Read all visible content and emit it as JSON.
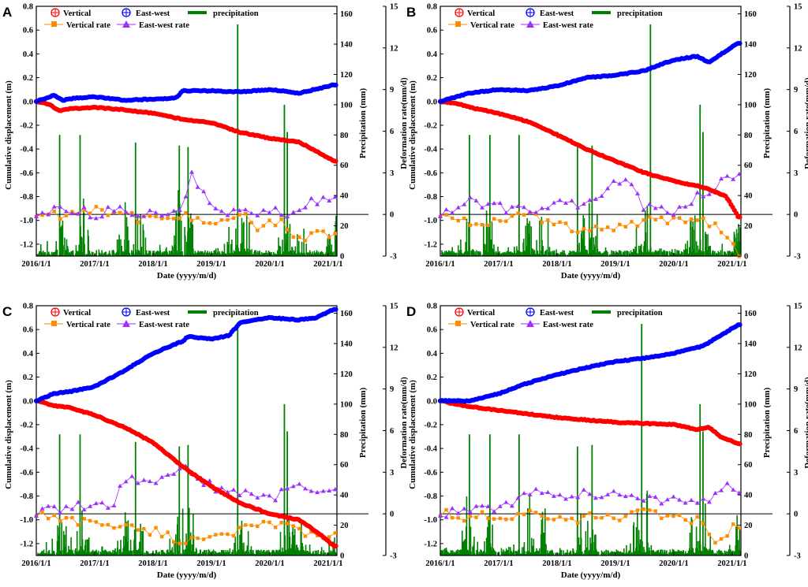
{
  "figure": {
    "xlabel": "Date (yyyy/m/d)",
    "ylabel_left": "Cumulative displacement (m)",
    "ylabel_precip": "Precipitation (mm)",
    "ylabel_rate": "Deformation rate(mm/d)",
    "legend": {
      "vertical": "Vertical",
      "east_west": "East-west",
      "precipitation": "precipitation",
      "vertical_rate": "Vertical rate",
      "east_west_rate": "East-west rate"
    },
    "x_ticks": [
      "2016/1/1",
      "2017/1/1",
      "2018/1/1",
      "2019/1/1",
      "2020/1/1",
      "2021/1/1"
    ],
    "left_ticks": [
      "0.8",
      "0.6",
      "0.4",
      "0.2",
      "0.0",
      "-0.2",
      "-0.4",
      "-0.6",
      "-0.8",
      "-1.0",
      "-1.2"
    ],
    "precip_ticks": [
      "160",
      "140",
      "120",
      "100",
      "80",
      "60",
      "40",
      "20",
      "0"
    ],
    "rate_ticks": [
      "15",
      "12",
      "9",
      "6",
      "3",
      "0",
      "-3"
    ],
    "colors": {
      "vertical": "#ff0000",
      "east_west": "#0000ff",
      "precipitation": "#008000",
      "vertical_rate": "#ff8c00",
      "east_west_rate": "#9b30ff"
    }
  },
  "chart_data": [
    {
      "type": "line",
      "panel": "A",
      "title": "",
      "xlabel": "Date (yyyy/m/d)",
      "ylabel": "Cumulative displacement (m)",
      "x_range": [
        2016.0,
        2021.15
      ],
      "ylim": [
        -1.3,
        0.8
      ],
      "y2lim_precipitation": [
        0,
        165
      ],
      "y3lim_rate": [
        -3,
        15
      ],
      "series": [
        {
          "name": "Vertical",
          "x": [
            2016.0,
            2016.2,
            2016.4,
            2016.6,
            2017.0,
            2017.5,
            2018.0,
            2018.5,
            2019.0,
            2019.5,
            2020.0,
            2020.5,
            2020.8,
            2021.1
          ],
          "values": [
            0.0,
            -0.02,
            -0.08,
            -0.06,
            -0.05,
            -0.07,
            -0.1,
            -0.15,
            -0.18,
            -0.26,
            -0.31,
            -0.34,
            -0.42,
            -0.5
          ]
        },
        {
          "name": "East-west",
          "x": [
            2016.0,
            2016.3,
            2016.45,
            2016.7,
            2017.0,
            2017.5,
            2018.0,
            2018.4,
            2018.5,
            2019.0,
            2019.5,
            2020.0,
            2020.5,
            2021.1
          ],
          "values": [
            0.0,
            0.05,
            0.01,
            0.03,
            0.04,
            0.01,
            0.02,
            0.03,
            0.09,
            0.09,
            0.08,
            0.1,
            0.07,
            0.14
          ]
        },
        {
          "name": "Vertical rate",
          "x": [
            2016.0,
            2016.5,
            2017.0,
            2017.5,
            2018.0,
            2018.5,
            2019.0,
            2019.5,
            2019.8,
            2020.2,
            2020.5,
            2020.8,
            2021.1
          ],
          "values": [
            0,
            0,
            0.5,
            0,
            -0.5,
            0,
            -0.5,
            0,
            -1.0,
            -0.5,
            -1.8,
            -1.2,
            -1.5
          ]
        },
        {
          "name": "East-west rate",
          "x": [
            2016.0,
            2016.5,
            2017.0,
            2017.5,
            2018.0,
            2018.5,
            2018.65,
            2019.0,
            2019.5,
            2020.0,
            2020.3,
            2020.6,
            2021.1
          ],
          "values": [
            0,
            0.5,
            0,
            0.4,
            0,
            0.5,
            3.0,
            0.3,
            0,
            0.4,
            -0.4,
            0.8,
            1.0
          ]
        },
        {
          "name": "precipitation",
          "peaks_x": [
            2016.4,
            2016.75,
            2017.7,
            2018.45,
            2018.6,
            2019.45,
            2020.25,
            2020.3
          ],
          "peaks_mm": [
            80,
            80,
            75,
            73,
            72,
            153,
            100,
            82
          ]
        }
      ]
    },
    {
      "type": "line",
      "panel": "B",
      "title": "",
      "xlabel": "Date (yyyy/m/d)",
      "ylabel": "Cumulative displacement (m)",
      "x_range": [
        2016.0,
        2021.15
      ],
      "ylim": [
        -1.3,
        0.8
      ],
      "y2lim_precipitation": [
        0,
        165
      ],
      "y3lim_rate": [
        -3,
        15
      ],
      "series": [
        {
          "name": "Vertical",
          "x": [
            2016.0,
            2016.3,
            2016.6,
            2017.0,
            2017.5,
            2018.0,
            2018.5,
            2019.0,
            2019.5,
            2020.0,
            2020.5,
            2020.9,
            2021.1
          ],
          "values": [
            0.0,
            -0.02,
            -0.06,
            -0.1,
            -0.17,
            -0.28,
            -0.4,
            -0.5,
            -0.6,
            -0.67,
            -0.72,
            -0.8,
            -0.97
          ]
        },
        {
          "name": "East-west",
          "x": [
            2016.0,
            2016.5,
            2017.0,
            2017.5,
            2018.0,
            2018.5,
            2019.0,
            2019.5,
            2020.0,
            2020.4,
            2020.6,
            2021.1
          ],
          "values": [
            0.0,
            0.07,
            0.1,
            0.09,
            0.13,
            0.2,
            0.22,
            0.26,
            0.35,
            0.38,
            0.33,
            0.49
          ]
        },
        {
          "name": "Vertical rate",
          "x": [
            2016.0,
            2016.5,
            2017.0,
            2017.5,
            2018.0,
            2018.5,
            2019.0,
            2019.5,
            2020.0,
            2020.5,
            2020.8,
            2021.1
          ],
          "values": [
            0,
            -0.5,
            -0.5,
            0,
            -0.8,
            -1.2,
            -1.0,
            -0.5,
            -0.5,
            -0.3,
            -1.0,
            -2.8
          ]
        },
        {
          "name": "East-west rate",
          "x": [
            2016.0,
            2016.5,
            2017.0,
            2017.5,
            2018.0,
            2018.5,
            2018.9,
            2019.2,
            2019.5,
            2020.0,
            2020.5,
            2021.1
          ],
          "values": [
            0,
            1.0,
            0.5,
            0.3,
            1.0,
            0.5,
            2.0,
            2.5,
            0.5,
            0.3,
            1.5,
            3.0
          ]
        },
        {
          "name": "precipitation",
          "peaks_x": [
            2016.5,
            2016.85,
            2017.35,
            2018.35,
            2018.6,
            2019.6,
            2020.45,
            2020.5
          ],
          "peaks_mm": [
            80,
            80,
            80,
            72,
            73,
            153,
            100,
            82
          ]
        }
      ]
    },
    {
      "type": "line",
      "panel": "C",
      "title": "",
      "xlabel": "Date (yyyy/m/d)",
      "ylabel": "Cumulative displacement (m)",
      "x_range": [
        2016.0,
        2021.15
      ],
      "ylim": [
        -1.3,
        0.8
      ],
      "y2lim_precipitation": [
        0,
        165
      ],
      "y3lim_rate": [
        -3,
        15
      ],
      "series": [
        {
          "name": "Vertical",
          "x": [
            2016.0,
            2016.3,
            2016.6,
            2017.0,
            2017.5,
            2018.0,
            2018.5,
            2019.0,
            2019.5,
            2020.0,
            2020.5,
            2020.8,
            2021.1
          ],
          "values": [
            0.0,
            -0.04,
            -0.06,
            -0.12,
            -0.22,
            -0.35,
            -0.55,
            -0.72,
            -0.86,
            -0.95,
            -1.0,
            -1.1,
            -1.22
          ]
        },
        {
          "name": "East-west",
          "x": [
            2016.0,
            2016.3,
            2016.6,
            2017.0,
            2017.5,
            2018.0,
            2018.5,
            2018.6,
            2019.0,
            2019.3,
            2019.5,
            2020.0,
            2020.5,
            2020.8,
            2021.1
          ],
          "values": [
            0.0,
            0.06,
            0.08,
            0.12,
            0.25,
            0.4,
            0.5,
            0.54,
            0.52,
            0.55,
            0.66,
            0.7,
            0.68,
            0.7,
            0.77
          ]
        },
        {
          "name": "Vertical rate",
          "x": [
            2016.0,
            2016.5,
            2017.0,
            2017.5,
            2018.0,
            2018.5,
            2019.0,
            2019.5,
            2020.0,
            2020.5,
            2020.8,
            2021.1
          ],
          "values": [
            0,
            -0.5,
            -0.5,
            -1.0,
            -1.2,
            -2.0,
            -1.5,
            -1.2,
            -0.8,
            -1.0,
            -1.8,
            -1.5
          ]
        },
        {
          "name": "East-west rate",
          "x": [
            2016.0,
            2016.5,
            2017.0,
            2017.3,
            2017.5,
            2018.0,
            2018.5,
            2019.0,
            2019.5,
            2020.0,
            2020.5,
            2020.8,
            2021.1
          ],
          "values": [
            0,
            0.5,
            0.5,
            0.5,
            2.5,
            2.0,
            3.5,
            2.0,
            1.5,
            1.0,
            2.5,
            1.5,
            1.5
          ]
        },
        {
          "name": "precipitation",
          "peaks_x": [
            2016.4,
            2016.75,
            2017.7,
            2018.45,
            2018.6,
            2019.45,
            2020.25,
            2020.3
          ],
          "peaks_mm": [
            80,
            80,
            75,
            72,
            73,
            153,
            100,
            82
          ]
        }
      ]
    },
    {
      "type": "line",
      "panel": "D",
      "title": "",
      "xlabel": "Date (yyyy/m/d)",
      "ylabel": "Cumulative displacement (m)",
      "x_range": [
        2016.0,
        2021.15
      ],
      "ylim": [
        -1.3,
        0.8
      ],
      "y2lim_precipitation": [
        0,
        165
      ],
      "y3lim_rate": [
        -3,
        15
      ],
      "series": [
        {
          "name": "Vertical",
          "x": [
            2016.0,
            2016.4,
            2017.0,
            2017.5,
            2018.0,
            2018.5,
            2019.0,
            2019.5,
            2020.0,
            2020.4,
            2020.6,
            2020.8,
            2021.1
          ],
          "values": [
            0.0,
            -0.04,
            -0.08,
            -0.11,
            -0.14,
            -0.16,
            -0.18,
            -0.19,
            -0.2,
            -0.24,
            -0.22,
            -0.3,
            -0.36
          ]
        },
        {
          "name": "East-west",
          "x": [
            2016.0,
            2016.5,
            2017.0,
            2017.5,
            2018.0,
            2018.5,
            2019.0,
            2019.5,
            2020.0,
            2020.5,
            2021.1
          ],
          "values": [
            0.0,
            0.0,
            0.06,
            0.15,
            0.22,
            0.28,
            0.33,
            0.36,
            0.4,
            0.46,
            0.64
          ]
        },
        {
          "name": "Vertical rate",
          "x": [
            2016.0,
            2016.5,
            2017.0,
            2017.5,
            2018.0,
            2018.5,
            2019.0,
            2019.5,
            2020.0,
            2020.5,
            2020.75,
            2021.1
          ],
          "values": [
            0,
            -0.2,
            -0.2,
            0,
            -0.5,
            -0.3,
            -0.2,
            0,
            -0.3,
            -0.5,
            -2.0,
            -0.8
          ]
        },
        {
          "name": "East-west rate",
          "x": [
            2016.0,
            2016.5,
            2017.0,
            2017.5,
            2018.0,
            2018.5,
            2019.0,
            2019.5,
            2020.0,
            2020.5,
            2020.9,
            2021.1
          ],
          "values": [
            0,
            0.3,
            0.3,
            1.5,
            1.3,
            1.5,
            1.3,
            1.0,
            1.0,
            0.8,
            2.2,
            1.6
          ]
        },
        {
          "name": "precipitation",
          "peaks_x": [
            2016.5,
            2016.85,
            2017.35,
            2018.35,
            2018.6,
            2019.45,
            2020.45,
            2020.5
          ],
          "peaks_mm": [
            80,
            80,
            80,
            72,
            73,
            153,
            100,
            82
          ]
        }
      ]
    }
  ]
}
